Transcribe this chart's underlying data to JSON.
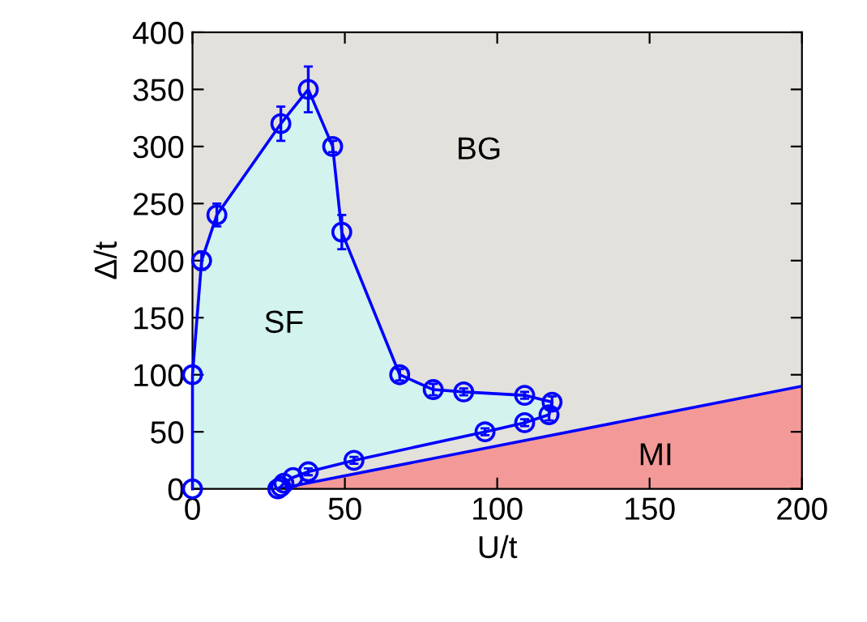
{
  "chart_data": {
    "type": "line",
    "xlabel": "U/t",
    "ylabel": "Δ/t",
    "xlim": [
      0,
      200
    ],
    "ylim": [
      0,
      400
    ],
    "xticks": [
      0,
      50,
      100,
      150,
      200
    ],
    "yticks": [
      0,
      50,
      100,
      150,
      200,
      250,
      300,
      350,
      400
    ],
    "grid": false,
    "marker": "circle",
    "line_style": "solid",
    "series": [
      {
        "color": "#0000ff",
        "x": [
          0,
          0,
          3,
          8,
          29,
          38,
          46,
          49,
          68,
          79,
          89,
          109,
          118,
          117,
          109,
          96,
          53,
          38,
          33,
          30,
          29,
          28
        ],
        "values": [
          0,
          100,
          200,
          240,
          320,
          350,
          300,
          225,
          100,
          87,
          85,
          82,
          76,
          65,
          58,
          50,
          25,
          15,
          10,
          5,
          2,
          0
        ],
        "errors": [
          null,
          null,
          8,
          10,
          15,
          20,
          5,
          15,
          5,
          5,
          3,
          3,
          5,
          5,
          3,
          3,
          3,
          3,
          null,
          null,
          null,
          null
        ]
      },
      {
        "type": "area",
        "color": "#ff6b6b",
        "marker": "none",
        "x": [
          28,
          200
        ],
        "values": [
          0,
          90
        ]
      }
    ],
    "annotations": [
      "BG",
      "SF",
      "MI"
    ]
  }
}
